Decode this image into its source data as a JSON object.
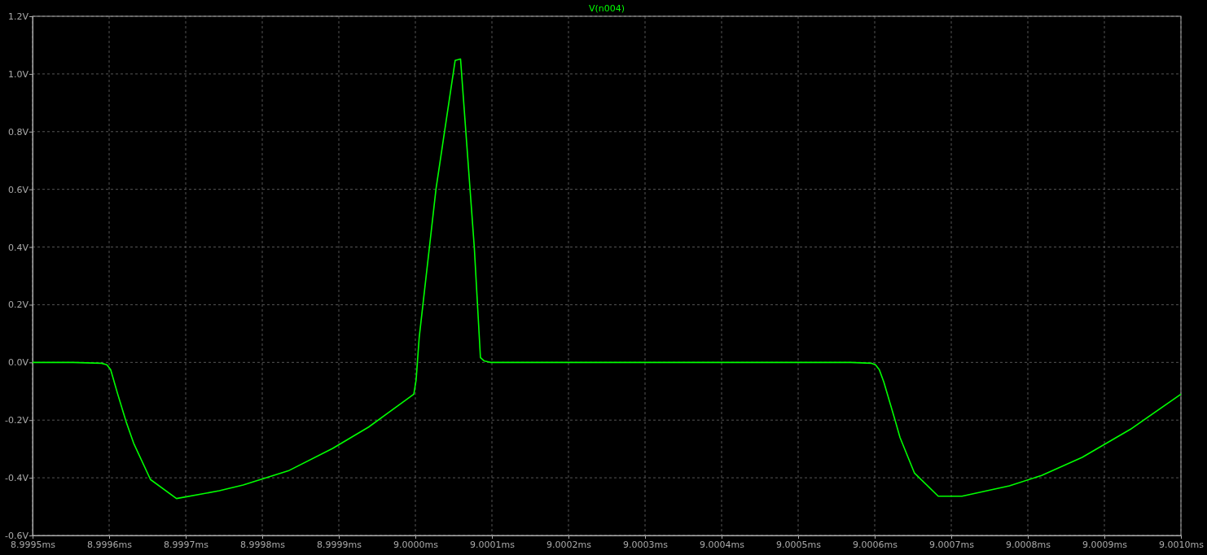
{
  "chart_data": {
    "type": "line",
    "title": "V(n004)",
    "x": [
      8.9995,
      8.999553,
      8.99959,
      8.999597,
      8.999602,
      8.999611,
      8.999622,
      8.999632,
      8.999654,
      8.999688,
      8.999744,
      8.999775,
      8.999834,
      8.999892,
      8.999939,
      8.999998,
      9.000001,
      9.000005,
      9.000027,
      9.000052,
      9.000059,
      9.000077,
      9.000085,
      9.00009,
      9.000098,
      9.000569,
      9.000596,
      9.000601,
      9.000606,
      9.000612,
      9.000627,
      9.000633,
      9.000652,
      9.000683,
      9.000714,
      9.000776,
      9.000818,
      9.000871,
      9.000934,
      9.001
    ],
    "series": [
      {
        "color": "#00ff00",
        "values": [
          0,
          0,
          -0.003,
          -0.008,
          -0.025,
          -0.108,
          -0.204,
          -0.28,
          -0.406,
          -0.472,
          -0.445,
          -0.425,
          -0.376,
          -0.298,
          -0.224,
          -0.11,
          -0.06,
          0.086,
          0.602,
          1.047,
          1.052,
          0.398,
          0.017,
          0.005,
          0,
          0,
          -0.003,
          -0.008,
          -0.025,
          -0.069,
          -0.204,
          -0.26,
          -0.384,
          -0.464,
          -0.464,
          -0.428,
          -0.392,
          -0.329,
          -0.232,
          -0.11
        ]
      }
    ],
    "xlim": [
      8.9995,
      9.001
    ],
    "xticks": [
      {
        "value": 8.9995,
        "label": "8.9995ms"
      },
      {
        "value": 8.9996,
        "label": "8.9996ms"
      },
      {
        "value": 8.9997,
        "label": "8.9997ms"
      },
      {
        "value": 8.9998,
        "label": "8.9998ms"
      },
      {
        "value": 8.9999,
        "label": "8.9999ms"
      },
      {
        "value": 9.0,
        "label": "9.0000ms"
      },
      {
        "value": 9.0001,
        "label": "9.0001ms"
      },
      {
        "value": 9.0002,
        "label": "9.0002ms"
      },
      {
        "value": 9.0003,
        "label": "9.0003ms"
      },
      {
        "value": 9.0004,
        "label": "9.0004ms"
      },
      {
        "value": 9.0005,
        "label": "9.0005ms"
      },
      {
        "value": 9.0006,
        "label": "9.0006ms"
      },
      {
        "value": 9.0007,
        "label": "9.0007ms"
      },
      {
        "value": 9.0008,
        "label": "9.0008ms"
      },
      {
        "value": 9.0009,
        "label": "9.0009ms"
      },
      {
        "value": 9.001,
        "label": "9.0010ms"
      }
    ],
    "ylim": [
      -0.6,
      1.2
    ],
    "yticks": [
      {
        "value": -0.6,
        "label": "-0.6V"
      },
      {
        "value": -0.4,
        "label": "-0.4V"
      },
      {
        "value": -0.2,
        "label": "-0.2V"
      },
      {
        "value": 0,
        "label": "0.0V"
      },
      {
        "value": 0.2,
        "label": "0.2V"
      },
      {
        "value": 0.4,
        "label": "0.4V"
      },
      {
        "value": 0.6,
        "label": "0.6V"
      },
      {
        "value": 0.8,
        "label": "0.8V"
      },
      {
        "value": 1.0,
        "label": "1.0V"
      },
      {
        "value": 1.2,
        "label": "1.2V"
      }
    ],
    "grid": true,
    "line_style": "solid",
    "marker": "none"
  }
}
